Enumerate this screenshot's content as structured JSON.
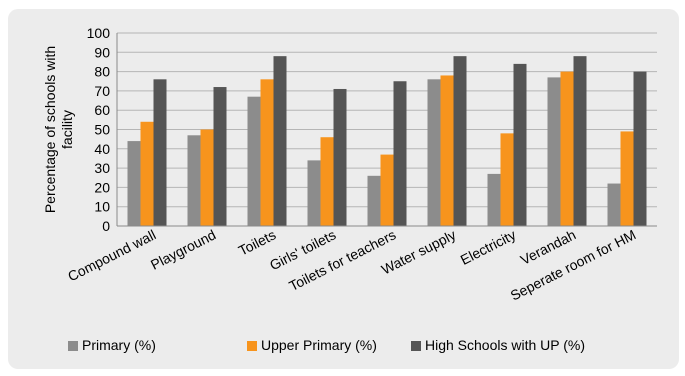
{
  "chart_data": {
    "type": "bar",
    "title": "",
    "xlabel": "",
    "ylabel": "Percentage of schools with facility",
    "ylabel_lines": [
      "Percentage of schools with",
      "facility"
    ],
    "ylim": [
      0,
      100
    ],
    "yticks": [
      "0",
      "10",
      "20",
      "30",
      "40",
      "50",
      "60",
      "70",
      "80",
      "90",
      "100"
    ],
    "grid": true,
    "legend_position": "bottom",
    "categories": [
      "Compound wall",
      "Playground",
      "Toilets",
      "Girls' toilets",
      "Toilets for teachers",
      "Water supply",
      "Electricity",
      "Verandah",
      "Seperate room for HM"
    ],
    "series": [
      {
        "name": "Primary (%)",
        "color": "#8c8c8c",
        "values": [
          44,
          47,
          67,
          34,
          26,
          76,
          27,
          77,
          22
        ]
      },
      {
        "name": "Upper Primary (%)",
        "color": "#f7941d",
        "values": [
          54,
          50,
          76,
          46,
          37,
          78,
          48,
          80,
          49
        ]
      },
      {
        "name": "High Schools with UP (%)",
        "color": "#555555",
        "values": [
          76,
          72,
          88,
          71,
          75,
          88,
          84,
          88,
          80
        ]
      }
    ]
  }
}
